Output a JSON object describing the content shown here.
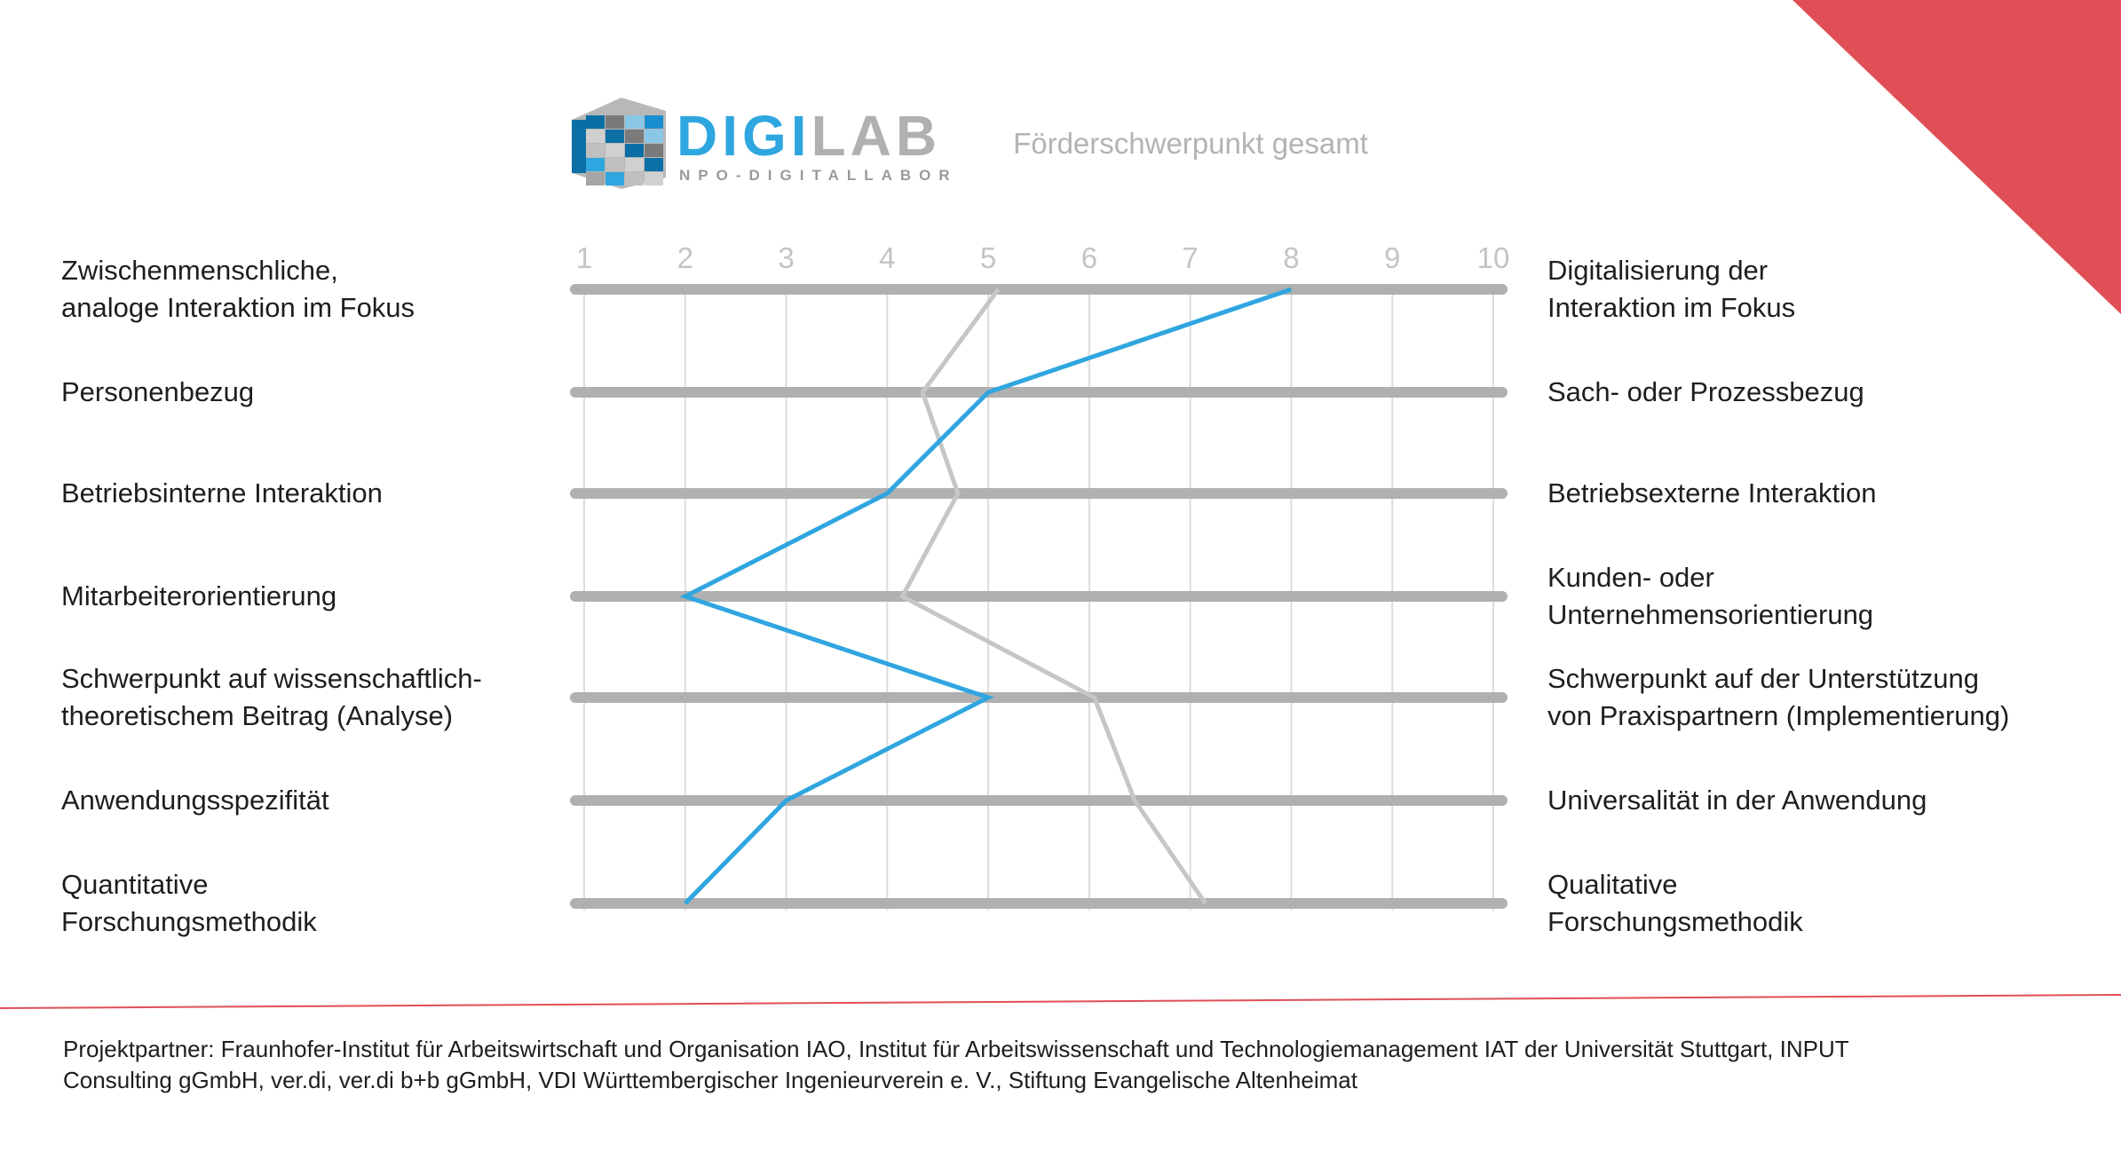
{
  "logo": {
    "text_blue": "DIGI",
    "text_gray": "LAB",
    "subtitle": "NPO-DIGITALLABOR"
  },
  "colors": {
    "accent_blue": "#2fa6df",
    "overall_gray": "#c6c6c6",
    "track": "#b0b0b0",
    "corner_red": "#e04f55"
  },
  "chart_data": {
    "type": "line",
    "title": "Förderschwerpunkt gesamt",
    "orientation": "horizontal-profile",
    "xlim": [
      1,
      10
    ],
    "x_ticks": [
      "1",
      "2",
      "3",
      "4",
      "5",
      "6",
      "7",
      "8",
      "9",
      "10"
    ],
    "grid": true,
    "rows": [
      {
        "left": [
          "Zwischenmenschliche,",
          "analoge Interaktion im Fokus"
        ],
        "right": [
          "Digitalisierung der",
          "Interaktion im Fokus"
        ]
      },
      {
        "left": [
          "Personenbezug"
        ],
        "right": [
          "Sach- oder Prozessbezug"
        ]
      },
      {
        "left": [
          "Betriebsinterne Interaktion"
        ],
        "right": [
          "Betriebsexterne Interaktion"
        ]
      },
      {
        "left": [
          "Mitarbeiterorientierung"
        ],
        "right": [
          "Kunden- oder",
          "Unternehmensorientierung"
        ]
      },
      {
        "left": [
          "Schwerpunkt auf wissenschaftlich-",
          "theoretischem Beitrag (Analyse)"
        ],
        "right": [
          "Schwerpunkt auf der Unterstützung",
          "von Praxispartnern (Implementierung)"
        ]
      },
      {
        "left": [
          "Anwendungsspezifität"
        ],
        "right": [
          "Universalität in der Anwendung"
        ]
      },
      {
        "left": [
          "Quantitative",
          "Forschungsmethodik"
        ],
        "right": [
          "Qualitative",
          "Forschungsmethodik"
        ]
      }
    ],
    "series": [
      {
        "color": "#c6c6c6",
        "values": [
          5.1,
          4.35,
          4.7,
          4.15,
          6.05,
          6.45,
          7.15
        ]
      },
      {
        "color": "#2fa6df",
        "values": [
          8,
          5,
          4,
          2,
          5,
          3,
          2
        ]
      }
    ]
  },
  "footer": {
    "line1": "Projektpartner: Fraunhofer-Institut für Arbeitswirtschaft und Organisation IAO, Institut für Arbeitswissenschaft und Technologiemanagement IAT der Universität Stuttgart, INPUT",
    "line2": "Consulting gGmbH, ver.di, ver.di b+b gGmbH, VDI Württembergischer Ingenieurverein e. V., Stiftung Evangelische Altenheimat"
  }
}
